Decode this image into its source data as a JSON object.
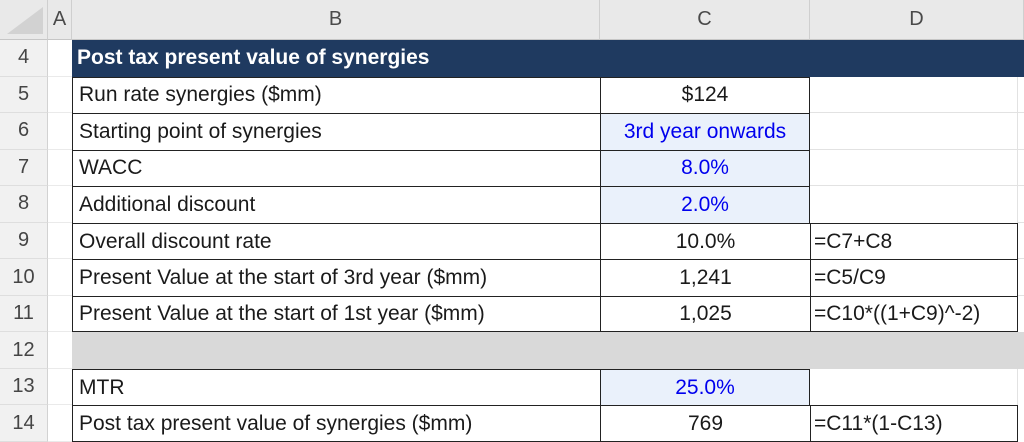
{
  "sheet": {
    "name": "Excel worksheet - Post tax present value of synergies",
    "column_headers": [
      "A",
      "B",
      "C",
      "D"
    ],
    "rows": [
      {
        "num": "4",
        "label": "Post tax present value of synergies",
        "value": "",
        "formula": ""
      },
      {
        "num": "5",
        "label": "Run rate synergies ($mm)",
        "value": "$124",
        "formula": ""
      },
      {
        "num": "6",
        "label": "Starting point of synergies",
        "value": "3rd year onwards",
        "formula": ""
      },
      {
        "num": "7",
        "label": "WACC",
        "value": "8.0%",
        "formula": ""
      },
      {
        "num": "8",
        "label": "Additional discount",
        "value": "2.0%",
        "formula": ""
      },
      {
        "num": "9",
        "label": "Overall discount rate",
        "value": "10.0%",
        "formula": "=C7+C8"
      },
      {
        "num": "10",
        "label": "Present Value at the start of 3rd year ($mm)",
        "value": "1,241",
        "formula": "=C5/C9"
      },
      {
        "num": "11",
        "label": "Present Value at the start of 1st year ($mm)",
        "value": "1,025",
        "formula": "=C10*((1+C9)^-2)"
      },
      {
        "num": "12",
        "label": "",
        "value": "",
        "formula": ""
      },
      {
        "num": "13",
        "label": "MTR",
        "value": "25.0%",
        "formula": ""
      },
      {
        "num": "14",
        "label": "Post tax present value of synergies ($mm)",
        "value": "769",
        "formula": "=C11*(1-C13)"
      }
    ],
    "colors": {
      "title_band": "#1F3A60",
      "input_cell_fill": "#EAF1FB",
      "input_text_blue": "#0000EE",
      "spacer_row_gray": "#D9D9D9"
    }
  }
}
